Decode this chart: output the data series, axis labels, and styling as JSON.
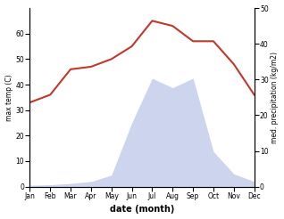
{
  "months": [
    "Jan",
    "Feb",
    "Mar",
    "Apr",
    "May",
    "Jun",
    "Jul",
    "Aug",
    "Sep",
    "Oct",
    "Nov",
    "Dec"
  ],
  "max_temp": [
    33,
    36,
    46,
    47,
    50,
    55,
    65,
    63,
    57,
    57,
    48,
    36
  ],
  "precipitation": [
    2,
    3,
    5,
    8,
    18,
    100,
    170,
    155,
    170,
    55,
    20,
    8
  ],
  "temp_ylim": [
    0,
    70
  ],
  "precip_ylim": [
    0,
    280
  ],
  "ylabel_left": "max temp (C)",
  "ylabel_right": "med. precipitation (kg/m2)",
  "xlabel": "date (month)",
  "temp_color": "#c0392b",
  "precip_fill_color": "#b8c4e8",
  "precip_fill_alpha": 0.7,
  "right_yticks": [
    0,
    10,
    20,
    30,
    40,
    50
  ],
  "right_ytick_max": 50,
  "left_yticks": [
    0,
    10,
    20,
    30,
    40,
    50,
    60
  ]
}
